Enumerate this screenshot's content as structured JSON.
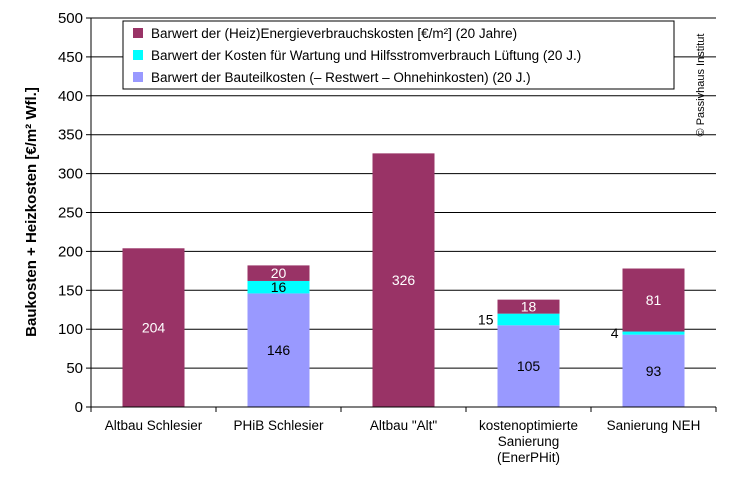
{
  "chart_data": {
    "type": "bar",
    "stacked": true,
    "ylabel": "Baukosten + Heizkosten [€/m² Wfl.]",
    "ylim": [
      0,
      500
    ],
    "yticks": [
      "0",
      "50",
      "100",
      "150",
      "200",
      "250",
      "300",
      "350",
      "400",
      "450",
      "500"
    ],
    "grid": true,
    "legend_position": "top",
    "categories": [
      [
        "Altbau Schlesier"
      ],
      [
        "PHiB Schlesier"
      ],
      [
        "Altbau \"Alt\""
      ],
      [
        "kostenoptimierte",
        "Sanierung",
        "(EnerPHit)"
      ],
      [
        "Sanierung NEH"
      ]
    ],
    "series": [
      {
        "name": "Barwert der Bauteilkosten (– Restwert – Ohnehinkosten)  (20 J.)",
        "color": "#9999ff",
        "values": [
          0,
          146,
          0,
          105,
          93
        ],
        "labels": [
          "",
          "146",
          "",
          "105",
          "93"
        ],
        "label_color": "#000000"
      },
      {
        "name": "Barwert der Kosten für Wartung und Hilfsstromverbrauch Lüftung (20 J.)",
        "color": "#00ffff",
        "values": [
          0,
          16,
          0,
          15,
          4
        ],
        "labels": [
          "",
          "16",
          "",
          "15",
          "4"
        ],
        "label_color": "#000000"
      },
      {
        "name": "Barwert der (Heiz)Energieverbrauchskosten [€/m²]  (20 Jahre)",
        "color": "#993366",
        "values": [
          204,
          20,
          326,
          18,
          81
        ],
        "labels": [
          "204",
          "20",
          "326",
          "18",
          "81"
        ],
        "label_color": "#ffffff"
      }
    ],
    "legend_order": [
      2,
      1,
      0
    ],
    "annotation": "© Passivhaus Institut"
  }
}
